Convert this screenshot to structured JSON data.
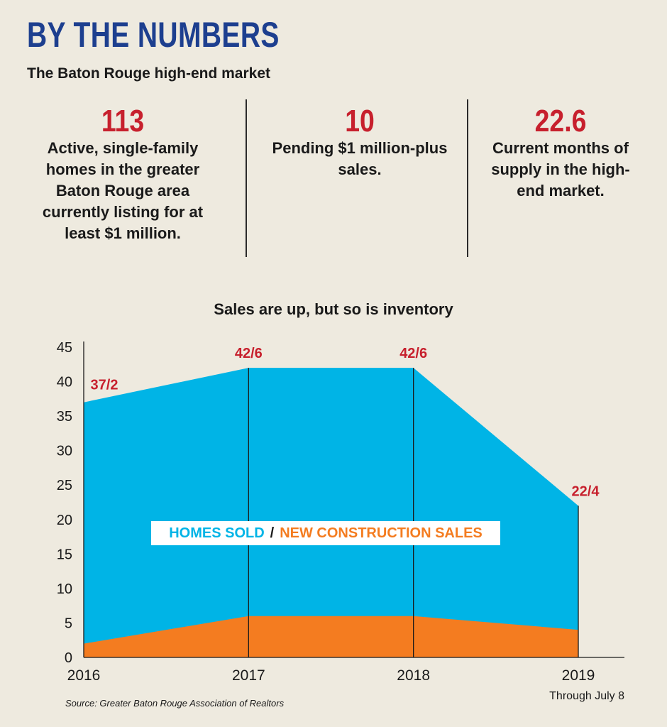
{
  "header": {
    "title": "BY THE NUMBERS",
    "subtitle": "The Baton Rouge high-end market"
  },
  "stats": [
    {
      "value": "113",
      "description": "Active, single-family homes in the greater Baton Rouge area currently listing for at least $1 million."
    },
    {
      "value": "10",
      "description": "Pending $1 million-plus sales."
    },
    {
      "value": "22.6",
      "description": "Current months of supply in the high-end market."
    }
  ],
  "colors": {
    "title": "#1d3f8f",
    "stat_number": "#c7202d",
    "homes_sold": "#00b4e6",
    "new_construction": "#f47c20",
    "data_label": "#c7202d",
    "background": "#eeeadf"
  },
  "chart_data": {
    "type": "area",
    "title": "Sales are up, but so is inventory",
    "categories": [
      "2016",
      "2017",
      "2018",
      "2019"
    ],
    "x_note": "Through July 8",
    "series": [
      {
        "name": "HOMES SOLD",
        "values": [
          37,
          42,
          42,
          22
        ]
      },
      {
        "name": "NEW CONSTRUCTION SALES",
        "values": [
          2,
          6,
          6,
          4
        ]
      }
    ],
    "data_labels": [
      "37/2",
      "42/6",
      "42/6",
      "22/4"
    ],
    "legend": {
      "homes": "HOMES SOLD",
      "separator": "/",
      "new": "NEW CONSTRUCTION SALES"
    },
    "ylim": [
      0,
      45
    ],
    "yticks": [
      0,
      5,
      10,
      15,
      20,
      25,
      30,
      35,
      40,
      45
    ],
    "source": "Source: Greater Baton Rouge Association of Realtors"
  }
}
